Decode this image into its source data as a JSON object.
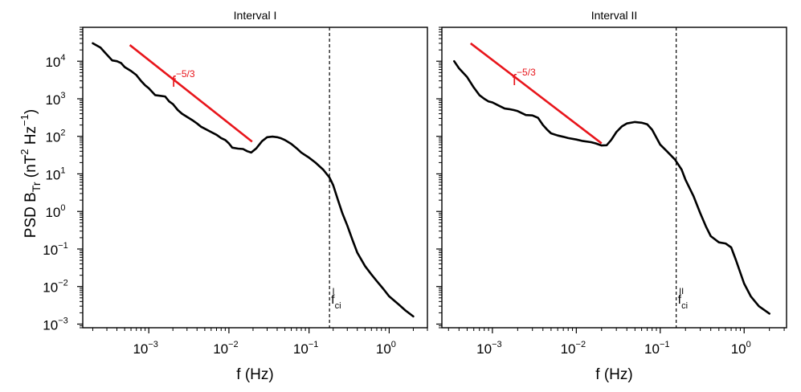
{
  "ylabel": {
    "base": "PSD B",
    "sub": "Tr",
    "mid1": " (nT",
    "sup1": "2",
    "mid2": " Hz",
    "sup2": "−1",
    "end": ")"
  },
  "colors": {
    "line": "#000000",
    "reference": "#e8151b"
  },
  "chart_data": [
    {
      "type": "line",
      "title": "Interval I",
      "xlabel": "f (Hz)",
      "x_scale": "log",
      "y_scale": "log",
      "xlim": [
        0.00015,
        3.0
      ],
      "ylim": [
        0.0008,
        80000
      ],
      "x_ticks": [
        {
          "base": "10",
          "exp": "−3",
          "value": 0.001
        },
        {
          "base": "10",
          "exp": "−2",
          "value": 0.01
        },
        {
          "base": "10",
          "exp": "−1",
          "value": 0.1
        },
        {
          "base": "10",
          "exp": "0",
          "value": 1
        }
      ],
      "y_ticks": [
        {
          "base": "10",
          "exp": "−3",
          "value": 0.001
        },
        {
          "base": "10",
          "exp": "−2",
          "value": 0.01
        },
        {
          "base": "10",
          "exp": "−1",
          "value": 0.1
        },
        {
          "base": "10",
          "exp": "0",
          "value": 1
        },
        {
          "base": "10",
          "exp": "1",
          "value": 10
        },
        {
          "base": "10",
          "exp": "2",
          "value": 100
        },
        {
          "base": "10",
          "exp": "3",
          "value": 1000
        },
        {
          "base": "10",
          "exp": "4",
          "value": 10000
        }
      ],
      "series": [
        {
          "name": "PSD",
          "x": [
            0.0002,
            0.00025,
            0.0003,
            0.00035,
            0.0004,
            0.00045,
            0.0005,
            0.0006,
            0.0007,
            0.0008,
            0.0009,
            0.001,
            0.0012,
            0.0014,
            0.0016,
            0.0018,
            0.002,
            0.0023,
            0.0026,
            0.003,
            0.0035,
            0.004,
            0.0045,
            0.005,
            0.006,
            0.007,
            0.008,
            0.009,
            0.01,
            0.011,
            0.013,
            0.015,
            0.017,
            0.019,
            0.022,
            0.026,
            0.03,
            0.035,
            0.04,
            0.045,
            0.05,
            0.06,
            0.07,
            0.08,
            0.1,
            0.12,
            0.15,
            0.18,
            0.2,
            0.23,
            0.26,
            0.3,
            0.35,
            0.4,
            0.5,
            0.6,
            0.7,
            0.85,
            1.0,
            1.3,
            1.6,
            2.0
          ],
          "y": [
            30000,
            23000,
            15000,
            10500,
            10000,
            9000,
            7000,
            5500,
            4300,
            3000,
            2300,
            1900,
            1250,
            1200,
            1150,
            850,
            720,
            500,
            400,
            330,
            270,
            220,
            180,
            160,
            130,
            110,
            90,
            80,
            65,
            50,
            47,
            46,
            40,
            37,
            48,
            75,
            95,
            98,
            95,
            88,
            80,
            63,
            48,
            37,
            27,
            20,
            13,
            8,
            5,
            2,
            0.9,
            0.42,
            0.17,
            0.08,
            0.035,
            0.021,
            0.014,
            0.0085,
            0.0055,
            0.0034,
            0.0023,
            0.0016
          ]
        }
      ],
      "reference_line": {
        "label_base": "f",
        "label_exp": "−5/3",
        "x": [
          0.00058,
          0.0195
        ],
        "y": [
          27000,
          72
        ]
      },
      "vline": {
        "x": 0.18,
        "label_base": "f",
        "label_sub": "ci",
        "label_sup": "I"
      }
    },
    {
      "type": "line",
      "title": "Interval II",
      "xlabel": "f (Hz)",
      "x_scale": "log",
      "y_scale": "log",
      "xlim": [
        0.00025,
        3.2
      ],
      "ylim": [
        0.0008,
        80000
      ],
      "x_ticks": [
        {
          "base": "10",
          "exp": "−3",
          "value": 0.001
        },
        {
          "base": "10",
          "exp": "−2",
          "value": 0.01
        },
        {
          "base": "10",
          "exp": "−1",
          "value": 0.1
        },
        {
          "base": "10",
          "exp": "0",
          "value": 1
        }
      ],
      "y_ticks": [
        {
          "base": "10",
          "exp": "−3",
          "value": 0.001
        },
        {
          "base": "10",
          "exp": "−2",
          "value": 0.01
        },
        {
          "base": "10",
          "exp": "−1",
          "value": 0.1
        },
        {
          "base": "10",
          "exp": "0",
          "value": 1
        },
        {
          "base": "10",
          "exp": "1",
          "value": 10
        },
        {
          "base": "10",
          "exp": "2",
          "value": 100
        },
        {
          "base": "10",
          "exp": "3",
          "value": 1000
        },
        {
          "base": "10",
          "exp": "4",
          "value": 10000
        }
      ],
      "series": [
        {
          "name": "PSD",
          "x": [
            0.00035,
            0.0004,
            0.0005,
            0.0006,
            0.0007,
            0.0008,
            0.0009,
            0.001,
            0.0012,
            0.0014,
            0.0016,
            0.0018,
            0.002,
            0.0025,
            0.003,
            0.0035,
            0.004,
            0.0045,
            0.005,
            0.006,
            0.007,
            0.008,
            0.01,
            0.012,
            0.015,
            0.017,
            0.02,
            0.023,
            0.026,
            0.03,
            0.035,
            0.04,
            0.05,
            0.06,
            0.07,
            0.08,
            0.1,
            0.12,
            0.15,
            0.18,
            0.2,
            0.25,
            0.3,
            0.35,
            0.4,
            0.5,
            0.6,
            0.7,
            0.8,
            1.0,
            1.2,
            1.5,
            2.0
          ],
          "y": [
            10000,
            6500,
            3800,
            2000,
            1250,
            1000,
            850,
            800,
            650,
            550,
            530,
            500,
            470,
            370,
            360,
            310,
            200,
            150,
            120,
            105,
            97,
            90,
            82,
            75,
            70,
            65,
            57,
            58,
            80,
            130,
            185,
            220,
            240,
            230,
            210,
            150,
            60,
            40,
            24,
            13,
            7,
            2.5,
            0.9,
            0.4,
            0.22,
            0.15,
            0.14,
            0.11,
            0.05,
            0.012,
            0.0055,
            0.003,
            0.0019
          ]
        }
      ],
      "reference_line": {
        "label_base": "f",
        "label_exp": "−5/3",
        "x": [
          0.00055,
          0.02
        ],
        "y": [
          30000,
          65
        ]
      },
      "vline": {
        "x": 0.155,
        "label_base": "f",
        "label_sub": "ci",
        "label_sup": "II"
      }
    }
  ]
}
